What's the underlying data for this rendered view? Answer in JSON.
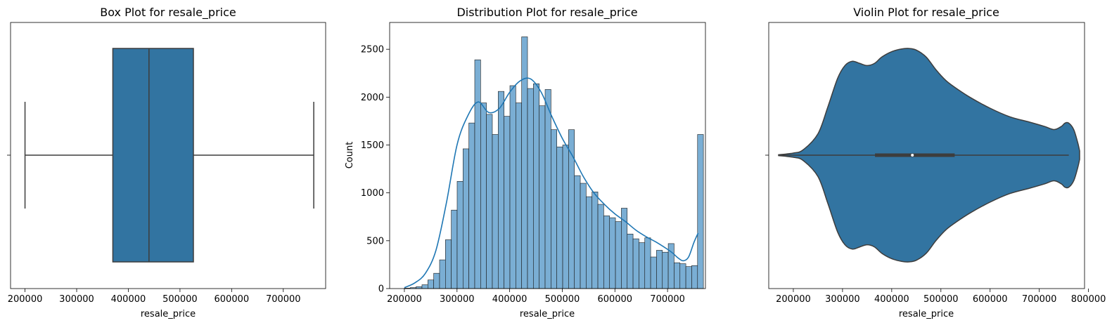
{
  "chart_data": [
    {
      "type": "box",
      "title": "Box Plot for resale_price",
      "xlabel": "resale_price",
      "ylabel": "",
      "xlim": [
        172000,
        782000
      ],
      "xticks": [
        200000,
        300000,
        400000,
        500000,
        600000,
        700000
      ],
      "xtick_labels": [
        "200000",
        "300000",
        "400000",
        "500000",
        "600000",
        "700000"
      ],
      "stats": {
        "whisker_low": 200000,
        "q1": 370000,
        "median": 440000,
        "q3": 526000,
        "whisker_high": 759000
      },
      "color": "#3274a1"
    },
    {
      "type": "bar",
      "title": "Distribution Plot for resale_price",
      "xlabel": "resale_price",
      "ylabel": "Count",
      "xlim": [
        172000,
        772000
      ],
      "ylim": [
        0,
        2780
      ],
      "xticks": [
        200000,
        300000,
        400000,
        500000,
        600000,
        700000
      ],
      "xtick_labels": [
        "200000",
        "300000",
        "400000",
        "500000",
        "600000",
        "700000"
      ],
      "yticks": [
        0,
        500,
        1000,
        1500,
        2000,
        2500
      ],
      "ytick_labels": [
        "0",
        "500",
        "1000",
        "1500",
        "2000",
        "2500"
      ],
      "bin_start": 200000,
      "bin_width": 11140,
      "counts": [
        5,
        10,
        20,
        40,
        90,
        160,
        300,
        510,
        820,
        1120,
        1460,
        1730,
        2390,
        1940,
        1820,
        1610,
        2060,
        1800,
        2120,
        1940,
        2630,
        2090,
        2140,
        1910,
        2080,
        1660,
        1480,
        1500,
        1660,
        1180,
        1100,
        960,
        1010,
        880,
        760,
        740,
        700,
        840,
        570,
        520,
        480,
        530,
        330,
        400,
        380,
        470,
        270,
        260,
        230,
        240,
        1610
      ],
      "kde_x": [
        200000,
        220000,
        240000,
        260000,
        280000,
        300000,
        320000,
        340000,
        360000,
        380000,
        400000,
        420000,
        440000,
        460000,
        480000,
        500000,
        520000,
        540000,
        560000,
        580000,
        600000,
        620000,
        640000,
        660000,
        680000,
        700000,
        710000,
        720000,
        730000,
        740000,
        750000,
        758000
      ],
      "kde_y": [
        10,
        60,
        160,
        400,
        900,
        1500,
        1800,
        1950,
        1840,
        1880,
        2050,
        2170,
        2190,
        2050,
        1800,
        1570,
        1380,
        1170,
        1000,
        880,
        780,
        700,
        610,
        540,
        480,
        410,
        370,
        320,
        290,
        330,
        480,
        580
      ],
      "bar_color": "#7aaed4",
      "line_color": "#1f77b4"
    },
    {
      "type": "violin",
      "title": "Violin Plot for resale_price",
      "xlabel": "resale_price",
      "ylabel": "",
      "xlim": [
        150000,
        792000
      ],
      "xticks": [
        200000,
        300000,
        400000,
        500000,
        600000,
        700000,
        800000
      ],
      "xtick_labels": [
        "200000",
        "300000",
        "400000",
        "500000",
        "600000",
        "700000",
        "800000"
      ],
      "stats": {
        "whisker_low": 170000,
        "q1": 366000,
        "median": 442000,
        "q3": 528000,
        "whisker_high": 760000
      },
      "density_x": [
        170000,
        200000,
        220000,
        250000,
        270000,
        290000,
        305000,
        320000,
        335000,
        350000,
        365000,
        380000,
        400000,
        420000,
        435000,
        450000,
        470000,
        490000,
        510000,
        530000,
        560000,
        600000,
        640000,
        680000,
        710000,
        730000,
        745000,
        752000,
        760000,
        770000,
        778000,
        782000
      ],
      "density_w": [
        0.004,
        0.02,
        0.05,
        0.2,
        0.45,
        0.72,
        0.84,
        0.88,
        0.86,
        0.84,
        0.86,
        0.92,
        0.97,
        0.995,
        1.0,
        0.985,
        0.92,
        0.8,
        0.7,
        0.63,
        0.54,
        0.44,
        0.36,
        0.31,
        0.27,
        0.24,
        0.27,
        0.3,
        0.3,
        0.24,
        0.12,
        0.04
      ],
      "color": "#3274a1"
    }
  ]
}
